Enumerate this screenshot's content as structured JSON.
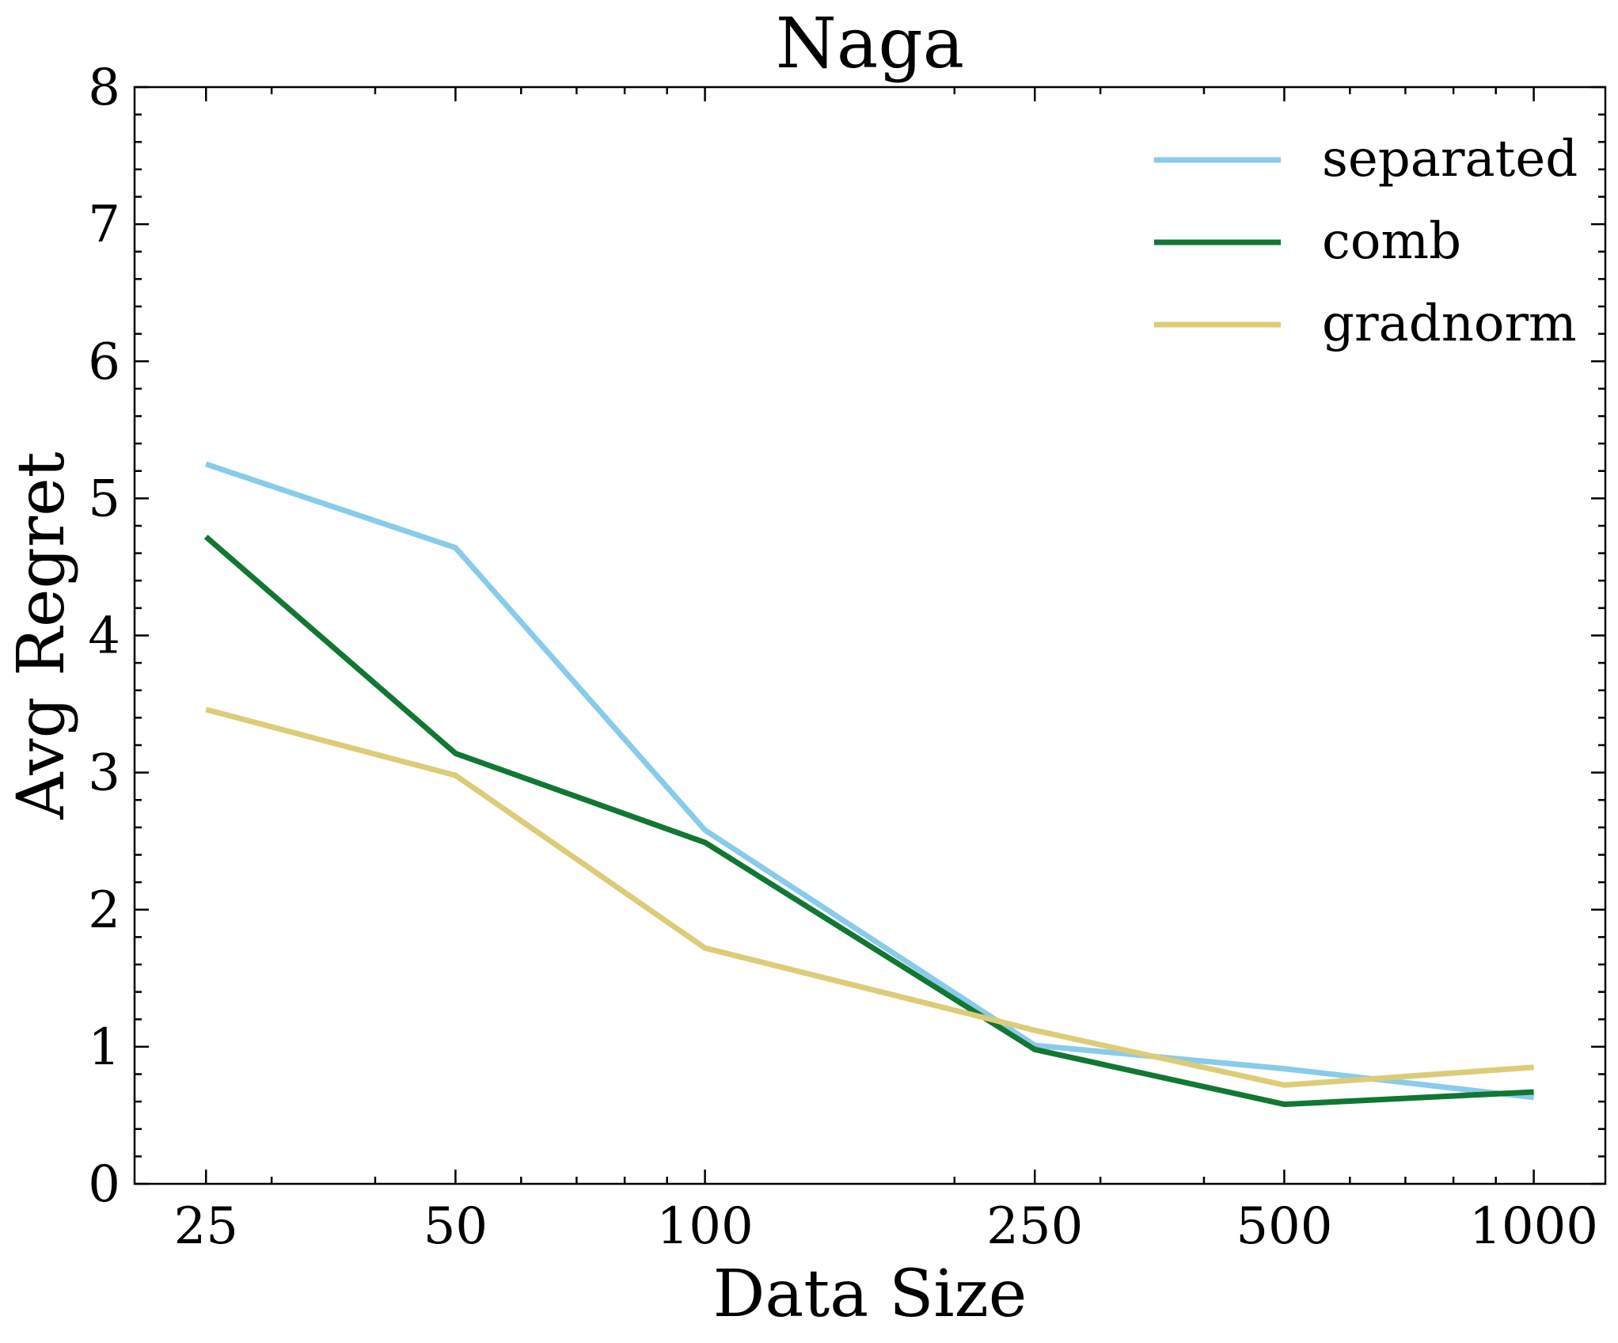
{
  "chart_data": {
    "type": "line",
    "title": "Naga",
    "xlabel": "Data Size",
    "ylabel": "Avg Regret",
    "x_scale": "log",
    "x": [
      25,
      50,
      100,
      250,
      500,
      1000
    ],
    "x_tick_labels": [
      "25",
      "50",
      "100",
      "250",
      "500",
      "1000"
    ],
    "xlim": [
      20.5,
      1220
    ],
    "ylim": [
      0,
      8
    ],
    "y_ticks": [
      0,
      1,
      2,
      3,
      4,
      5,
      6,
      7,
      8
    ],
    "y_tick_labels": [
      "0",
      "1",
      "2",
      "3",
      "4",
      "5",
      "6",
      "7",
      "8"
    ],
    "y_minor_step": 0.2,
    "x_minor_ticks": [
      30,
      40,
      60,
      70,
      80,
      90,
      200,
      300,
      400,
      600,
      700,
      800,
      900
    ],
    "grid": false,
    "legend_position": "top-right",
    "series": [
      {
        "name": "separated",
        "color": "#88cbeb",
        "values": [
          5.25,
          4.64,
          2.58,
          1.01,
          0.84,
          0.63
        ]
      },
      {
        "name": "comb",
        "color": "#117733",
        "values": [
          4.72,
          3.14,
          2.49,
          0.98,
          0.58,
          0.67
        ]
      },
      {
        "name": "gradnorm",
        "color": "#ddcc77",
        "values": [
          3.46,
          2.98,
          1.72,
          1.12,
          0.72,
          0.85
        ]
      }
    ]
  }
}
